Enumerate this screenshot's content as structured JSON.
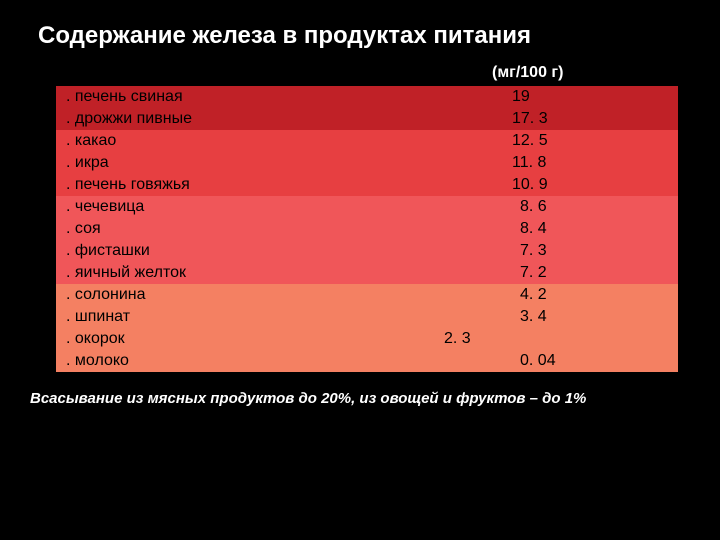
{
  "title": "Содержание железа в продуктах питания",
  "unit_label": "(мг/100 г)",
  "groups": [
    {
      "color": "#c02127",
      "items": [
        {
          "name": ". печень свиная",
          "value": "19",
          "value_indent": 456
        },
        {
          "name": ". дрожжи пивные",
          "value": "17. 3",
          "value_indent": 456
        }
      ]
    },
    {
      "color": "#e73f41",
      "items": [
        {
          "name": ". какао",
          "value": "12. 5",
          "value_indent": 456
        },
        {
          "name": ". икра",
          "value": "11. 8",
          "value_indent": 456
        },
        {
          "name": ". печень говяжья",
          "value": "10. 9",
          "value_indent": 456
        }
      ]
    },
    {
      "color": "#f05659",
      "items": [
        {
          "name": ". чечевица",
          "value": "8. 6",
          "value_indent": 464
        },
        {
          "name": ". соя",
          "value": "8. 4",
          "value_indent": 464
        },
        {
          "name": ". фисташки",
          "value": "7. 3",
          "value_indent": 464
        },
        {
          "name": ". яичный желток",
          "value": "7. 2",
          "value_indent": 464
        }
      ]
    },
    {
      "color": "#f48062",
      "items": [
        {
          "name": ". солонина",
          "value": "4. 2",
          "value_indent": 464
        },
        {
          "name": ". шпинат",
          "value": "3. 4",
          "value_indent": 464
        },
        {
          "name": ". окорок",
          "value": "2. 3",
          "value_indent": 388
        },
        {
          "name": ". молоко",
          "value": "0. 04",
          "value_indent": 464
        }
      ]
    }
  ],
  "footnote": "Всасывание из мясных продуктов до 20%, из овощей и фруктов – до 1%"
}
